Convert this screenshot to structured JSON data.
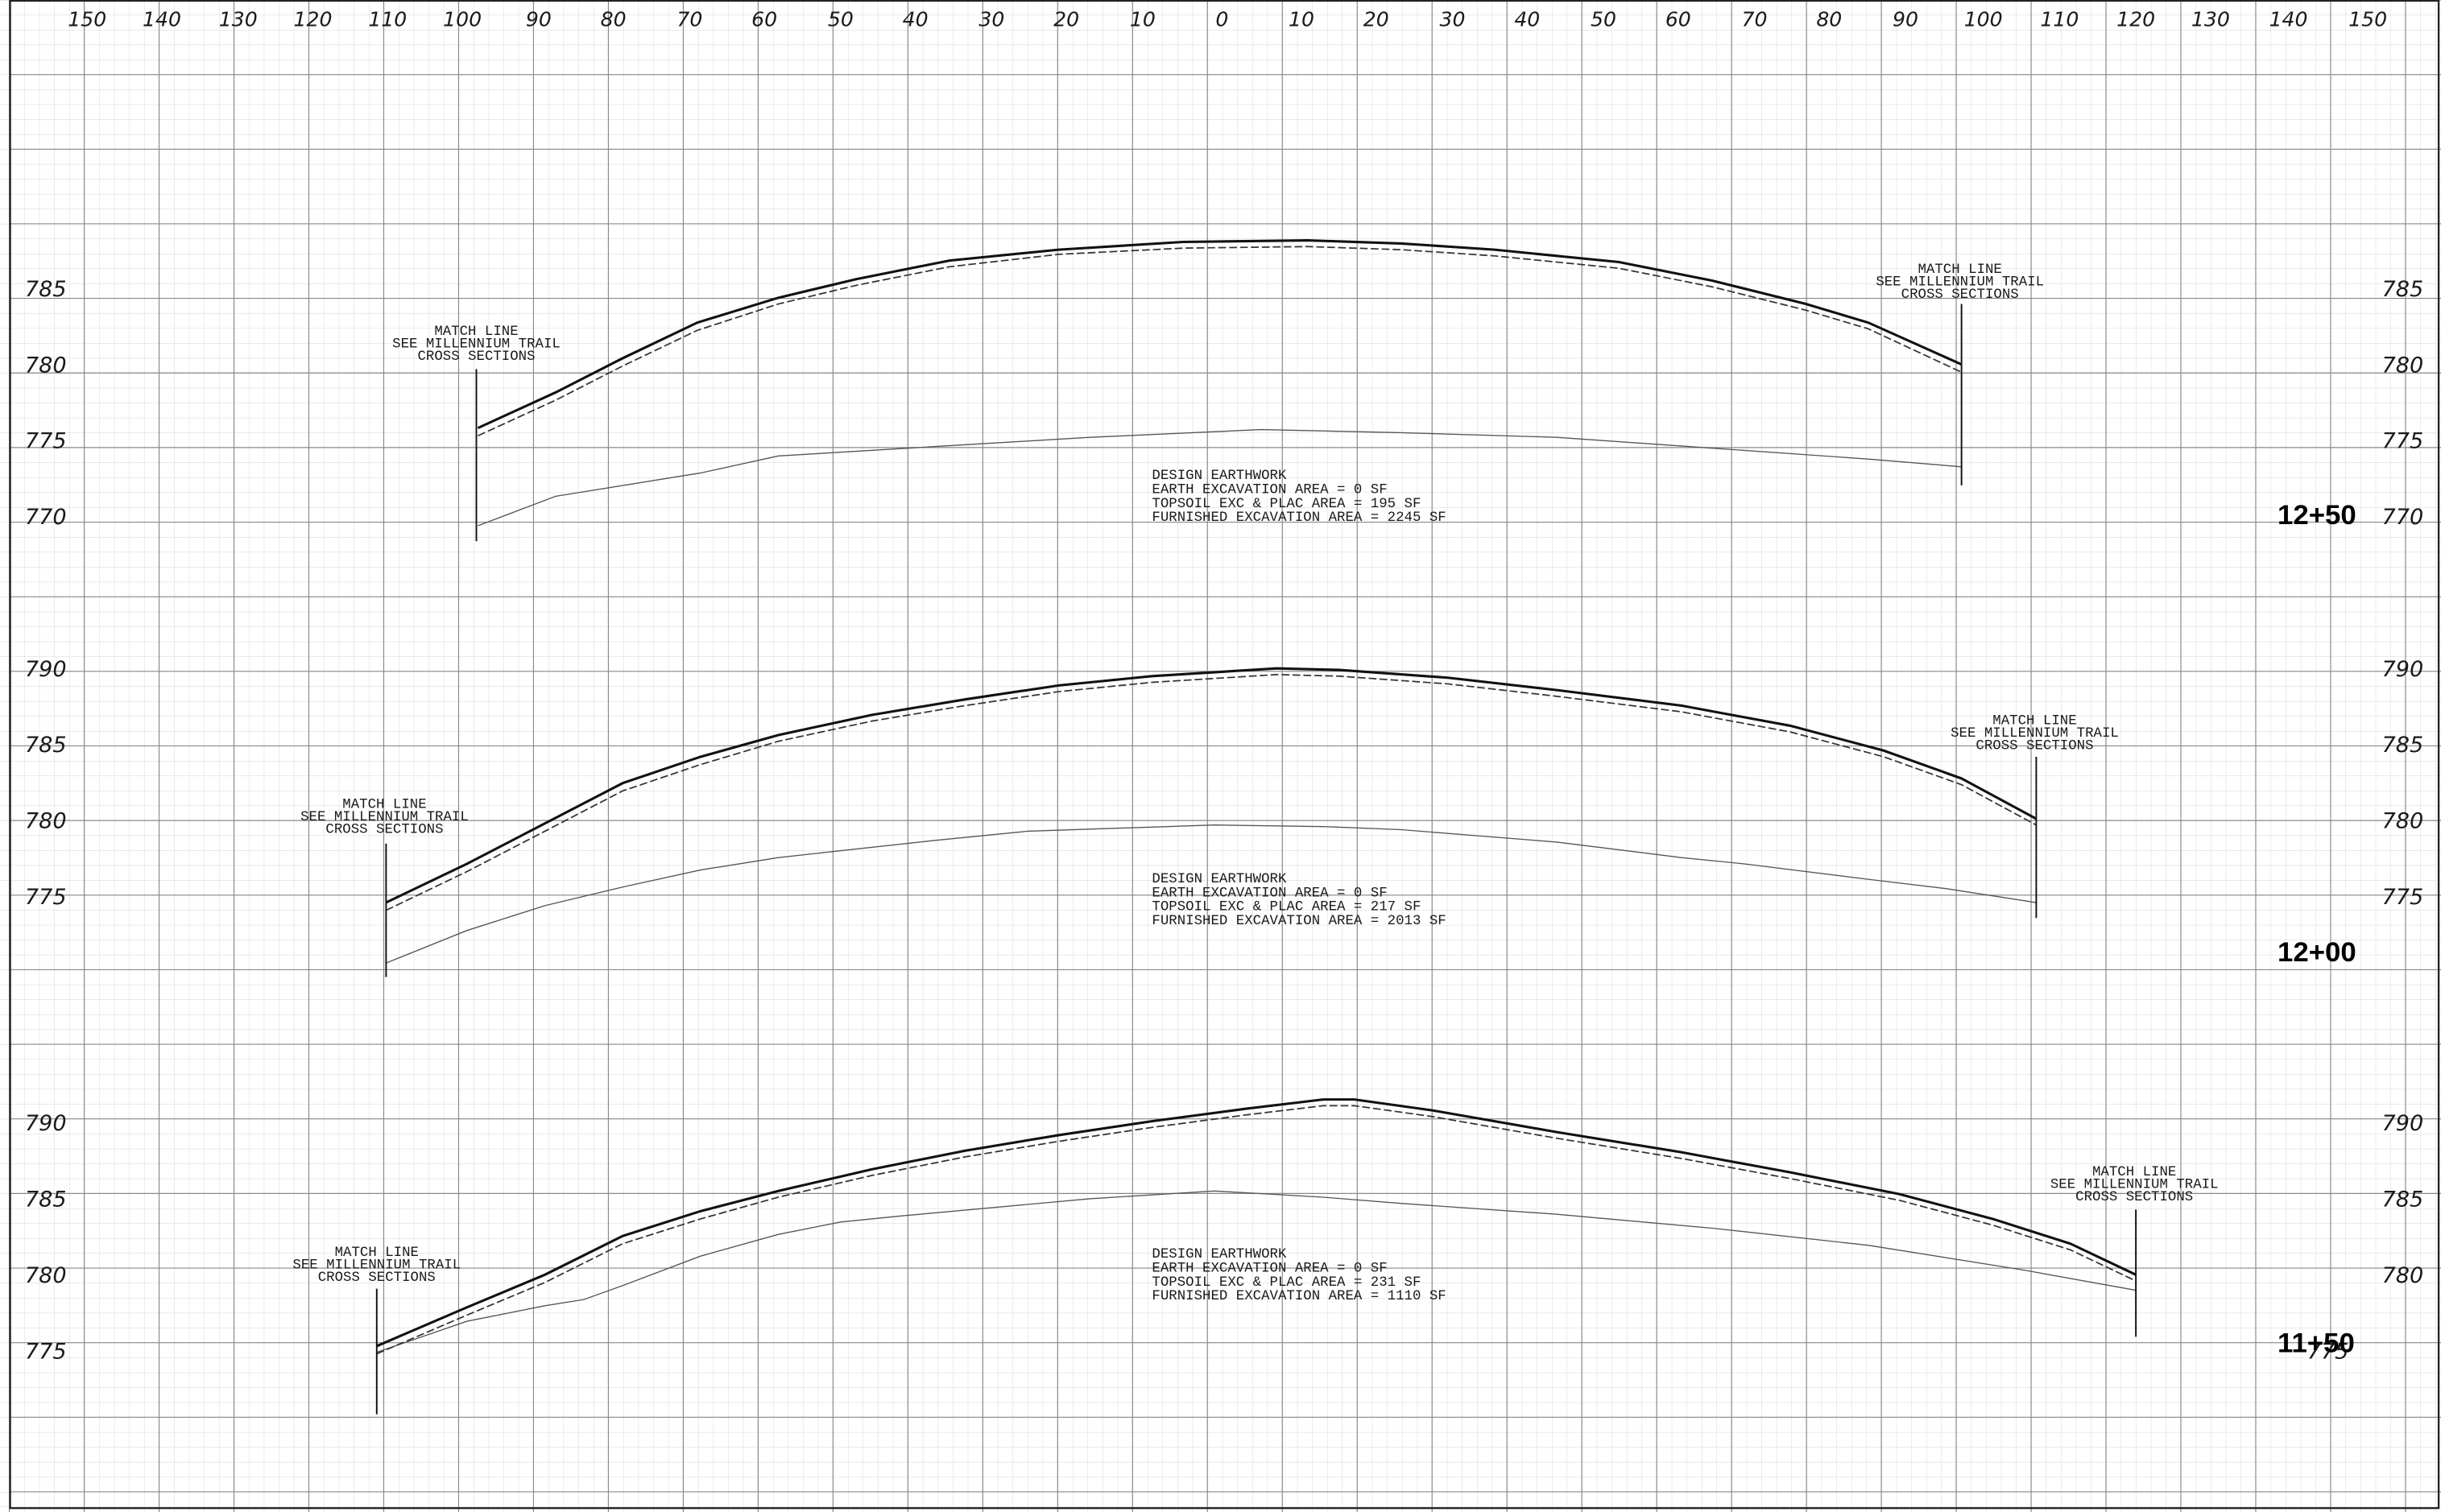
{
  "offset_labels": [
    "150",
    "140",
    "130",
    "120",
    "110",
    "100",
    "90",
    "80",
    "70",
    "60",
    "50",
    "40",
    "30",
    "20",
    "10",
    "0",
    "10",
    "20",
    "30",
    "40",
    "50",
    "60",
    "70",
    "80",
    "90",
    "100",
    "110",
    "120",
    "130",
    "140",
    "150"
  ],
  "sections": [
    {
      "station": "12+50",
      "elevation_labels": [
        "785",
        "780",
        "775",
        "770"
      ],
      "left_match": {
        "l1": "MATCH LINE",
        "l2": "SEE MILLENNIUM TRAIL",
        "l3": "CROSS SECTIONS"
      },
      "right_match": {
        "l1": "MATCH LINE",
        "l2": "SEE MILLENNIUM TRAIL",
        "l3": "CROSS SECTIONS"
      },
      "earthwork": {
        "l1": "DESIGN EARTHWORK",
        "l2": "EARTH EXCAVATION AREA = 0 SF",
        "l3": "TOPSOIL EXC & PLAC AREA = 195 SF",
        "l4": "FURNISHED EXCAVATION AREA = 2245 SF"
      }
    },
    {
      "station": "12+00",
      "elevation_labels": [
        "790",
        "785",
        "780",
        "775"
      ],
      "left_match": {
        "l1": "MATCH LINE",
        "l2": "SEE MILLENNIUM TRAIL",
        "l3": "CROSS SECTIONS"
      },
      "right_match": {
        "l1": "MATCH LINE",
        "l2": "SEE MILLENNIUM TRAIL",
        "l3": "CROSS SECTIONS"
      },
      "earthwork": {
        "l1": "DESIGN EARTHWORK",
        "l2": "EARTH EXCAVATION AREA = 0 SF",
        "l3": "TOPSOIL EXC & PLAC AREA = 217 SF",
        "l4": "FURNISHED EXCAVATION AREA = 2013 SF"
      }
    },
    {
      "station": "11+50",
      "elevation_labels": [
        "790",
        "785",
        "780",
        "775"
      ],
      "left_match": {
        "l1": "MATCH LINE",
        "l2": "SEE MILLENNIUM TRAIL",
        "l3": "CROSS SECTIONS"
      },
      "right_match": {
        "l1": "MATCH LINE",
        "l2": "SEE MILLENNIUM TRAIL",
        "l3": "CROSS SECTIONS"
      },
      "earthwork": {
        "l1": "DESIGN EARTHWORK",
        "l2": "EARTH EXCAVATION AREA = 0 SF",
        "l3": "TOPSOIL EXC & PLAC AREA = 231 SF",
        "l4": "FURNISHED EXCAVATION AREA = 1110 SF"
      }
    }
  ]
}
